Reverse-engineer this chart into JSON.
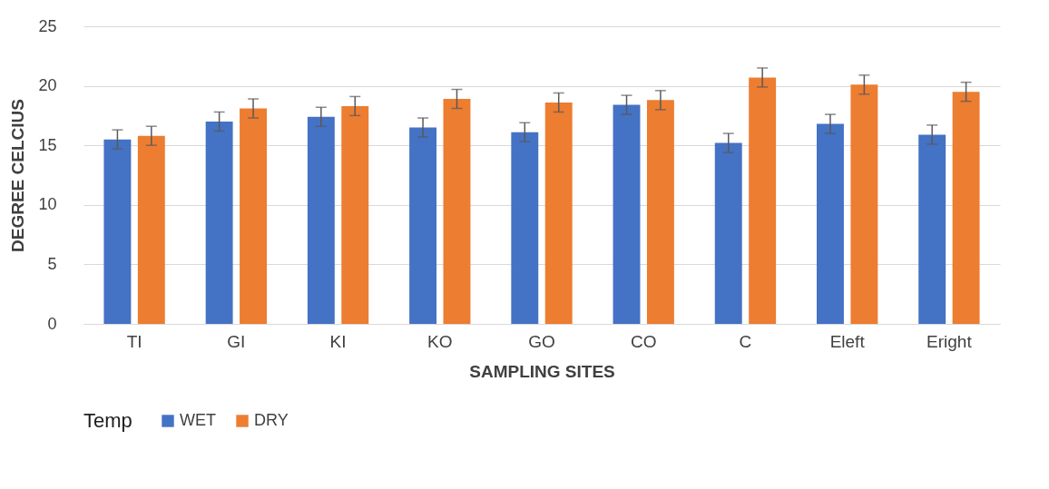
{
  "chart_data": {
    "type": "bar",
    "xlabel": "SAMPLING SITES",
    "ylabel": "DEGREE CELCIUS",
    "legend_title": "Temp",
    "categories": [
      "TI",
      "GI",
      "KI",
      "KO",
      "GO",
      "CO",
      "C",
      "Eleft",
      "Eright"
    ],
    "series": [
      {
        "name": "WET",
        "color": "#4472c4",
        "values": [
          15.5,
          17.0,
          17.4,
          16.5,
          16.1,
          18.4,
          15.2,
          16.8,
          15.9
        ],
        "errors": [
          0.8,
          0.8,
          0.8,
          0.8,
          0.8,
          0.8,
          0.8,
          0.8,
          0.8
        ]
      },
      {
        "name": "DRY",
        "color": "#ed7d31",
        "values": [
          15.8,
          18.1,
          18.3,
          18.9,
          18.6,
          18.8,
          20.7,
          20.1,
          19.5
        ],
        "errors": [
          0.8,
          0.8,
          0.8,
          0.8,
          0.8,
          0.8,
          0.8,
          0.8,
          0.8
        ]
      }
    ],
    "ylim": [
      0,
      25
    ],
    "yticks": [
      0,
      5,
      10,
      15,
      20,
      25
    ],
    "grid": "y",
    "legend": "bottom"
  }
}
